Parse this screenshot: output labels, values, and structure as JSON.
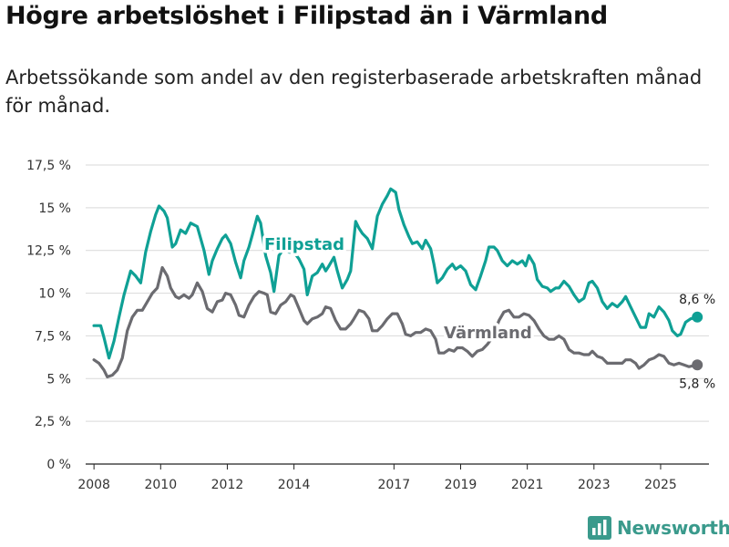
{
  "header": {
    "title": "Högre arbetslöshet i Filipstad än i Värmland",
    "subtitle": "Arbetssökande som andel av den registerbaserade arbetskraften månad för månad."
  },
  "brand": {
    "name": "Newsworthy",
    "icon": "bar-chart-logo-icon",
    "color": "#3a9a8c"
  },
  "chart_data": {
    "type": "line",
    "title": "",
    "xlabel": "",
    "ylabel": "",
    "ylim": [
      0,
      17.5
    ],
    "xlim": [
      2007.75,
      2026.45
    ],
    "y_ticks": [
      0,
      2.5,
      5,
      7.5,
      10,
      12.5,
      15,
      17.5
    ],
    "y_tick_labels": [
      "0 %",
      "2,5 %",
      "5 %",
      "7,5 %",
      "10 %",
      "12,5 %",
      "15 %",
      "17,5 %"
    ],
    "x_ticks": [
      2008,
      2010,
      2012,
      2014,
      2017,
      2019,
      2021,
      2023,
      2025
    ],
    "x_tick_labels": [
      "2008",
      "2010",
      "2012",
      "2014",
      "2017",
      "2019",
      "2021",
      "2023",
      "2025"
    ],
    "grid": true,
    "series": [
      {
        "name": "Filipstad",
        "label": "Filipstad",
        "color": "#0fa095",
        "end_label": "8,6 %",
        "points": [
          [
            2008.0,
            8.1
          ],
          [
            2008.2,
            8.1
          ],
          [
            2008.3,
            7.4
          ],
          [
            2008.45,
            6.2
          ],
          [
            2008.6,
            7.2
          ],
          [
            2008.75,
            8.6
          ],
          [
            2008.9,
            9.9
          ],
          [
            2009.1,
            11.3
          ],
          [
            2009.25,
            11.0
          ],
          [
            2009.4,
            10.6
          ],
          [
            2009.55,
            12.4
          ],
          [
            2009.7,
            13.6
          ],
          [
            2009.85,
            14.6
          ],
          [
            2009.95,
            15.1
          ],
          [
            2010.1,
            14.8
          ],
          [
            2010.2,
            14.4
          ],
          [
            2010.35,
            12.7
          ],
          [
            2010.45,
            12.9
          ],
          [
            2010.6,
            13.7
          ],
          [
            2010.75,
            13.5
          ],
          [
            2010.9,
            14.1
          ],
          [
            2011.1,
            13.9
          ],
          [
            2011.2,
            13.2
          ],
          [
            2011.3,
            12.5
          ],
          [
            2011.45,
            11.1
          ],
          [
            2011.55,
            11.9
          ],
          [
            2011.7,
            12.6
          ],
          [
            2011.85,
            13.2
          ],
          [
            2011.95,
            13.4
          ],
          [
            2012.1,
            12.9
          ],
          [
            2012.25,
            11.8
          ],
          [
            2012.4,
            10.9
          ],
          [
            2012.5,
            11.9
          ],
          [
            2012.65,
            12.7
          ],
          [
            2012.75,
            13.4
          ],
          [
            2012.9,
            14.5
          ],
          [
            2013.0,
            14.1
          ],
          [
            2013.15,
            12.2
          ],
          [
            2013.3,
            11.2
          ],
          [
            2013.4,
            10.1
          ],
          [
            2013.55,
            12.2
          ],
          [
            2013.7,
            12.6
          ],
          [
            2013.85,
            12.4
          ],
          [
            2014.0,
            12.4
          ],
          [
            2014.15,
            12.0
          ],
          [
            2014.3,
            11.4
          ],
          [
            2014.4,
            9.9
          ],
          [
            2014.55,
            11.0
          ],
          [
            2014.7,
            11.2
          ],
          [
            2014.85,
            11.7
          ],
          [
            2014.95,
            11.3
          ],
          [
            2015.05,
            11.6
          ],
          [
            2015.2,
            12.1
          ],
          [
            2015.3,
            11.3
          ],
          [
            2015.45,
            10.3
          ],
          [
            2015.6,
            10.8
          ],
          [
            2015.7,
            11.3
          ],
          [
            2015.85,
            14.2
          ],
          [
            2015.95,
            13.8
          ],
          [
            2016.05,
            13.5
          ],
          [
            2016.2,
            13.2
          ],
          [
            2016.35,
            12.6
          ],
          [
            2016.5,
            14.5
          ],
          [
            2016.65,
            15.2
          ],
          [
            2016.8,
            15.7
          ],
          [
            2016.9,
            16.1
          ],
          [
            2017.05,
            15.9
          ],
          [
            2017.15,
            14.9
          ],
          [
            2017.3,
            14.0
          ],
          [
            2017.45,
            13.3
          ],
          [
            2017.55,
            12.9
          ],
          [
            2017.7,
            13.0
          ],
          [
            2017.85,
            12.6
          ],
          [
            2017.95,
            13.1
          ],
          [
            2018.1,
            12.6
          ],
          [
            2018.2,
            11.7
          ],
          [
            2018.3,
            10.6
          ],
          [
            2018.45,
            10.9
          ],
          [
            2018.6,
            11.4
          ],
          [
            2018.75,
            11.7
          ],
          [
            2018.85,
            11.4
          ],
          [
            2019.0,
            11.6
          ],
          [
            2019.15,
            11.3
          ],
          [
            2019.3,
            10.5
          ],
          [
            2019.45,
            10.2
          ],
          [
            2019.6,
            11.0
          ],
          [
            2019.75,
            11.9
          ],
          [
            2019.85,
            12.7
          ],
          [
            2020.0,
            12.7
          ],
          [
            2020.1,
            12.5
          ],
          [
            2020.25,
            11.9
          ],
          [
            2020.4,
            11.6
          ],
          [
            2020.55,
            11.9
          ],
          [
            2020.7,
            11.7
          ],
          [
            2020.85,
            11.9
          ],
          [
            2020.95,
            11.6
          ],
          [
            2021.05,
            12.2
          ],
          [
            2021.2,
            11.7
          ],
          [
            2021.3,
            10.8
          ],
          [
            2021.45,
            10.4
          ],
          [
            2021.6,
            10.3
          ],
          [
            2021.7,
            10.1
          ],
          [
            2021.85,
            10.3
          ],
          [
            2021.95,
            10.3
          ],
          [
            2022.1,
            10.7
          ],
          [
            2022.25,
            10.4
          ],
          [
            2022.4,
            9.9
          ],
          [
            2022.55,
            9.5
          ],
          [
            2022.7,
            9.7
          ],
          [
            2022.85,
            10.6
          ],
          [
            2022.95,
            10.7
          ],
          [
            2023.1,
            10.3
          ],
          [
            2023.25,
            9.5
          ],
          [
            2023.4,
            9.1
          ],
          [
            2023.55,
            9.4
          ],
          [
            2023.7,
            9.2
          ],
          [
            2023.85,
            9.5
          ],
          [
            2023.95,
            9.8
          ],
          [
            2024.1,
            9.2
          ],
          [
            2024.25,
            8.6
          ],
          [
            2024.4,
            8.0
          ],
          [
            2024.55,
            8.0
          ],
          [
            2024.65,
            8.8
          ],
          [
            2024.8,
            8.6
          ],
          [
            2024.95,
            9.2
          ],
          [
            2025.1,
            8.9
          ],
          [
            2025.25,
            8.4
          ],
          [
            2025.35,
            7.8
          ],
          [
            2025.5,
            7.5
          ],
          [
            2025.6,
            7.6
          ],
          [
            2025.75,
            8.3
          ],
          [
            2025.9,
            8.5
          ],
          [
            2026.1,
            8.6
          ]
        ]
      },
      {
        "name": "Värmland",
        "label": "Värmland",
        "color": "#6b6b70",
        "end_label": "5,8 %",
        "points": [
          [
            2008.0,
            6.1
          ],
          [
            2008.15,
            5.9
          ],
          [
            2008.3,
            5.5
          ],
          [
            2008.4,
            5.1
          ],
          [
            2008.55,
            5.2
          ],
          [
            2008.7,
            5.5
          ],
          [
            2008.85,
            6.2
          ],
          [
            2009.0,
            7.8
          ],
          [
            2009.15,
            8.6
          ],
          [
            2009.3,
            9.0
          ],
          [
            2009.45,
            9.0
          ],
          [
            2009.6,
            9.5
          ],
          [
            2009.75,
            10.0
          ],
          [
            2009.9,
            10.3
          ],
          [
            2010.05,
            11.5
          ],
          [
            2010.2,
            11.0
          ],
          [
            2010.3,
            10.3
          ],
          [
            2010.45,
            9.8
          ],
          [
            2010.55,
            9.7
          ],
          [
            2010.7,
            9.9
          ],
          [
            2010.85,
            9.7
          ],
          [
            2010.95,
            9.9
          ],
          [
            2011.1,
            10.6
          ],
          [
            2011.25,
            10.1
          ],
          [
            2011.4,
            9.1
          ],
          [
            2011.55,
            8.9
          ],
          [
            2011.7,
            9.5
          ],
          [
            2011.85,
            9.6
          ],
          [
            2011.95,
            10.0
          ],
          [
            2012.1,
            9.9
          ],
          [
            2012.25,
            9.3
          ],
          [
            2012.35,
            8.7
          ],
          [
            2012.5,
            8.6
          ],
          [
            2012.65,
            9.3
          ],
          [
            2012.8,
            9.8
          ],
          [
            2012.95,
            10.1
          ],
          [
            2013.1,
            10.0
          ],
          [
            2013.2,
            9.9
          ],
          [
            2013.3,
            8.9
          ],
          [
            2013.45,
            8.8
          ],
          [
            2013.6,
            9.3
          ],
          [
            2013.75,
            9.5
          ],
          [
            2013.9,
            9.9
          ],
          [
            2014.0,
            9.8
          ],
          [
            2014.15,
            9.1
          ],
          [
            2014.3,
            8.4
          ],
          [
            2014.4,
            8.2
          ],
          [
            2014.55,
            8.5
          ],
          [
            2014.7,
            8.6
          ],
          [
            2014.85,
            8.8
          ],
          [
            2014.95,
            9.2
          ],
          [
            2015.1,
            9.1
          ],
          [
            2015.25,
            8.4
          ],
          [
            2015.4,
            7.9
          ],
          [
            2015.55,
            7.9
          ],
          [
            2015.7,
            8.2
          ],
          [
            2015.8,
            8.5
          ],
          [
            2015.95,
            9.0
          ],
          [
            2016.1,
            8.9
          ],
          [
            2016.25,
            8.5
          ],
          [
            2016.35,
            7.8
          ],
          [
            2016.5,
            7.8
          ],
          [
            2016.65,
            8.1
          ],
          [
            2016.8,
            8.5
          ],
          [
            2016.95,
            8.8
          ],
          [
            2017.1,
            8.8
          ],
          [
            2017.25,
            8.2
          ],
          [
            2017.35,
            7.6
          ],
          [
            2017.5,
            7.5
          ],
          [
            2017.65,
            7.7
          ],
          [
            2017.8,
            7.7
          ],
          [
            2017.95,
            7.9
          ],
          [
            2018.1,
            7.8
          ],
          [
            2018.25,
            7.3
          ],
          [
            2018.35,
            6.5
          ],
          [
            2018.5,
            6.5
          ],
          [
            2018.65,
            6.7
          ],
          [
            2018.8,
            6.6
          ],
          [
            2018.9,
            6.8
          ],
          [
            2019.05,
            6.8
          ],
          [
            2019.2,
            6.6
          ],
          [
            2019.35,
            6.3
          ],
          [
            2019.5,
            6.6
          ],
          [
            2019.65,
            6.7
          ],
          [
            2019.8,
            7.0
          ],
          [
            2019.95,
            7.4
          ],
          [
            2020.15,
            8.4
          ],
          [
            2020.3,
            8.9
          ],
          [
            2020.45,
            9.0
          ],
          [
            2020.6,
            8.6
          ],
          [
            2020.75,
            8.6
          ],
          [
            2020.9,
            8.8
          ],
          [
            2021.05,
            8.7
          ],
          [
            2021.2,
            8.4
          ],
          [
            2021.35,
            7.9
          ],
          [
            2021.5,
            7.5
          ],
          [
            2021.65,
            7.3
          ],
          [
            2021.8,
            7.3
          ],
          [
            2021.95,
            7.5
          ],
          [
            2022.1,
            7.3
          ],
          [
            2022.25,
            6.7
          ],
          [
            2022.4,
            6.5
          ],
          [
            2022.55,
            6.5
          ],
          [
            2022.7,
            6.4
          ],
          [
            2022.85,
            6.4
          ],
          [
            2022.95,
            6.6
          ],
          [
            2023.1,
            6.3
          ],
          [
            2023.25,
            6.2
          ],
          [
            2023.4,
            5.9
          ],
          [
            2023.55,
            5.9
          ],
          [
            2023.7,
            5.9
          ],
          [
            2023.85,
            5.9
          ],
          [
            2023.95,
            6.1
          ],
          [
            2024.1,
            6.1
          ],
          [
            2024.25,
            5.9
          ],
          [
            2024.35,
            5.6
          ],
          [
            2024.5,
            5.8
          ],
          [
            2024.65,
            6.1
          ],
          [
            2024.8,
            6.2
          ],
          [
            2024.95,
            6.4
          ],
          [
            2025.1,
            6.3
          ],
          [
            2025.25,
            5.9
          ],
          [
            2025.4,
            5.8
          ],
          [
            2025.55,
            5.9
          ],
          [
            2025.7,
            5.8
          ],
          [
            2025.85,
            5.7
          ],
          [
            2026.1,
            5.8
          ]
        ]
      }
    ]
  }
}
